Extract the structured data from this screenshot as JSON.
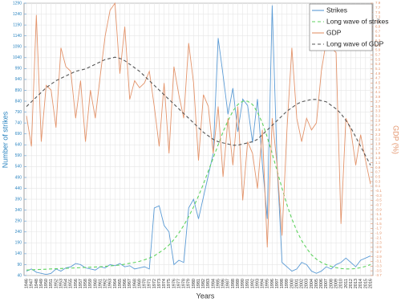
{
  "chart_data": {
    "type": "line",
    "x_label": "Years",
    "y_label": "Number of strikes",
    "y2_label": "GDP (%)",
    "categories": [
      1946,
      1947,
      1948,
      1949,
      1950,
      1951,
      1952,
      1953,
      1954,
      1955,
      1956,
      1957,
      1958,
      1959,
      1960,
      1961,
      1962,
      1963,
      1964,
      1965,
      1966,
      1967,
      1968,
      1969,
      1970,
      1971,
      1972,
      1973,
      1974,
      1975,
      1976,
      1977,
      1978,
      1979,
      1980,
      1981,
      1982,
      1983,
      1984,
      1985,
      1986,
      1987,
      1988,
      1989,
      1990,
      1991,
      1992,
      1993,
      1994,
      1995,
      1996,
      1997,
      1998,
      1999,
      2000,
      2001,
      2002,
      2003,
      2004,
      2005,
      2006,
      2007,
      2008,
      2009,
      2010,
      2011,
      2012,
      2013,
      2014,
      2015,
      2016
    ],
    "series": [
      {
        "name": "Strikes",
        "color": "#5b9bd5",
        "dash": false,
        "values": [
          60,
          70,
          55,
          50,
          45,
          50,
          70,
          60,
          75,
          80,
          95,
          90,
          75,
          70,
          65,
          80,
          75,
          90,
          85,
          95,
          80,
          85,
          70,
          75,
          80,
          70,
          350,
          360,
          270,
          240,
          90,
          110,
          100,
          350,
          390,
          300,
          400,
          500,
          600,
          1130,
          960,
          780,
          900,
          700,
          850,
          820,
          650,
          850,
          550,
          300,
          1280,
          550,
          100,
          80,
          60,
          70,
          100,
          90,
          60,
          50,
          60,
          80,
          70,
          90,
          100,
          120,
          100,
          80,
          110,
          120,
          130
        ]
      },
      {
        "name": "Long wave of strikes",
        "color": "#5fd35f",
        "dash": true,
        "values": [
          65,
          66,
          67,
          68,
          69,
          70,
          71,
          72,
          73,
          74,
          75,
          76,
          77,
          78,
          79,
          80,
          82,
          84,
          86,
          88,
          92,
          96,
          100,
          105,
          112,
          120,
          130,
          145,
          160,
          180,
          205,
          235,
          270,
          310,
          355,
          405,
          460,
          520,
          580,
          640,
          700,
          750,
          795,
          825,
          840,
          840,
          825,
          790,
          740,
          675,
          600,
          520,
          440,
          365,
          300,
          245,
          200,
          165,
          135,
          115,
          100,
          90,
          82,
          76,
          72,
          70,
          70,
          72,
          76,
          82,
          90
        ]
      },
      {
        "name": "GDP",
        "color": "#e3936a",
        "dash": false,
        "axis": "y2",
        "values": [
          3.1,
          1.8,
          7.4,
          2.0,
          4.4,
          4.2,
          2.6,
          6.0,
          5.2,
          5.0,
          3.0,
          4.6,
          2.0,
          4.2,
          3.0,
          4.8,
          6.5,
          7.6,
          7.9,
          4.9,
          6.9,
          3.8,
          4.6,
          4.3,
          4.5,
          5.0,
          3.5,
          1.8,
          4.5,
          1.5,
          5.2,
          4.0,
          3.0,
          6.2,
          4.5,
          1.2,
          4.0,
          3.5,
          1.5,
          3.5,
          0.5,
          3.0,
          1.0,
          3.5,
          -0.5,
          2.0,
          1.5,
          0.0,
          2.5,
          -2.5,
          3.0,
          1.0,
          -2.0,
          2.5,
          6.0,
          3.0,
          2.0,
          3.0,
          2.5,
          2.8,
          5.0,
          6.3,
          6.0,
          5.8,
          -1.5,
          3.0,
          2.5,
          1.0,
          2.3,
          1.2,
          0.2
        ]
      },
      {
        "name": "Long wave of GDP",
        "color": "#555555",
        "dash": true,
        "axis": "y2",
        "values": [
          3.5,
          3.7,
          3.9,
          4.1,
          4.3,
          4.45,
          4.6,
          4.7,
          4.8,
          4.9,
          5.0,
          5.05,
          5.1,
          5.2,
          5.3,
          5.4,
          5.5,
          5.55,
          5.6,
          5.55,
          5.45,
          5.3,
          5.15,
          5.0,
          4.8,
          4.6,
          4.4,
          4.2,
          4.0,
          3.8,
          3.6,
          3.4,
          3.2,
          3.0,
          2.8,
          2.6,
          2.4,
          2.25,
          2.1,
          2.0,
          1.95,
          1.9,
          1.85,
          1.85,
          1.9,
          1.95,
          2.0,
          2.1,
          2.3,
          2.5,
          2.7,
          2.9,
          3.1,
          3.3,
          3.45,
          3.6,
          3.7,
          3.75,
          3.8,
          3.8,
          3.75,
          3.7,
          3.55,
          3.4,
          3.2,
          2.9,
          2.6,
          2.2,
          1.8,
          1.4,
          1.0
        ]
      }
    ],
    "ylim": [
      40,
      1290
    ],
    "yticks": [
      40,
      90,
      140,
      190,
      240,
      290,
      340,
      390,
      440,
      490,
      540,
      590,
      640,
      690,
      740,
      790,
      840,
      890,
      940,
      990,
      1040,
      1090,
      1140,
      1190,
      1240,
      1290
    ],
    "y2lim": [
      -3.7,
      7.9
    ],
    "y2ticks": [
      -3.7,
      -3.5,
      -3.3,
      -3.1,
      -2.9,
      -2.7,
      -2.5,
      -2.3,
      -2.1,
      -1.9,
      -1.7,
      -1.5,
      -1.3,
      -1.1,
      -0.9,
      -0.7,
      -0.5,
      -0.3,
      -0.1,
      0.1,
      0.3,
      0.5,
      0.7,
      0.9,
      1.1,
      1.3,
      1.5,
      1.7,
      1.9,
      2.1,
      2.3,
      2.5,
      2.7,
      2.9,
      3.1,
      3.3,
      3.5,
      3.7,
      3.9,
      4.1,
      4.3,
      4.5,
      4.7,
      4.9,
      5.1,
      5.3,
      5.5,
      5.7,
      5.9,
      6.1,
      6.3,
      6.5,
      6.7,
      6.9,
      7.1,
      7.3,
      7.5,
      7.7,
      7.9
    ],
    "grid": true,
    "legend": "top-right"
  }
}
